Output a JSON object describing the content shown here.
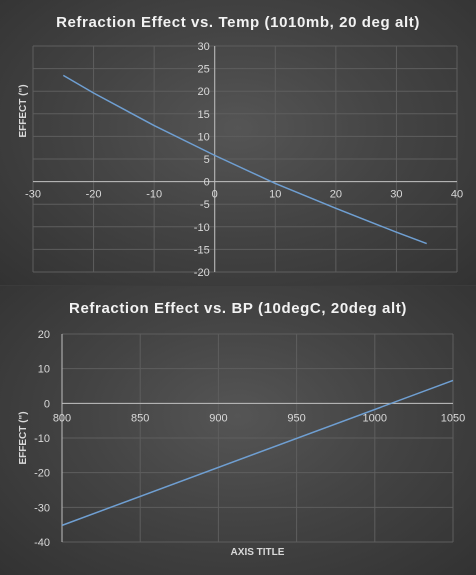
{
  "chart_data": [
    {
      "type": "line",
      "title": "Refraction Effect vs. Temp (1010mb, 20 deg alt)",
      "xlabel": "",
      "ylabel": "EFFECT (\")",
      "xlim": [
        -30,
        40
      ],
      "ylim": [
        -20,
        30
      ],
      "xticks": [
        -30,
        -20,
        -10,
        0,
        10,
        20,
        30,
        40
      ],
      "yticks": [
        -20,
        -15,
        -10,
        -5,
        0,
        5,
        10,
        15,
        20,
        25,
        30
      ],
      "grid": true,
      "series": [
        {
          "x": [
            -25,
            -20,
            -10,
            0,
            10,
            20,
            30,
            35
          ],
          "y": [
            23.5,
            19.6,
            12.4,
            5.8,
            -0.4,
            -5.9,
            -11.2,
            -13.7
          ]
        }
      ],
      "colors": {
        "line": "#6f9fd2",
        "grid": "#5e5e5e",
        "axis": "#bfbfbf",
        "text": "#d9d9d9"
      }
    },
    {
      "type": "line",
      "title": "Refraction Effect vs. BP (10degC, 20deg alt)",
      "xlabel": "AXIS TITLE",
      "ylabel": "EFFECT (\")",
      "xlim": [
        800,
        1050
      ],
      "ylim": [
        -40,
        20
      ],
      "xticks": [
        800,
        850,
        900,
        950,
        1000,
        1050
      ],
      "yticks": [
        -40,
        -30,
        -20,
        -10,
        0,
        10,
        20
      ],
      "grid": true,
      "series": [
        {
          "x": [
            800,
            1050
          ],
          "y": [
            -35.2,
            6.6
          ]
        }
      ],
      "colors": {
        "line": "#6f9fd2",
        "grid": "#5e5e5e",
        "axis": "#bfbfbf",
        "text": "#d9d9d9"
      }
    }
  ]
}
